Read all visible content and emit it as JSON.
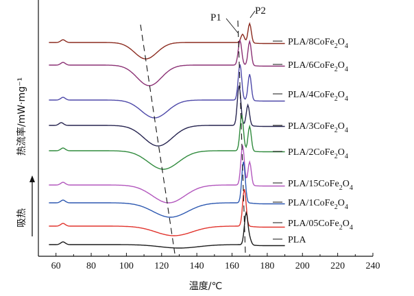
{
  "chart_data": {
    "type": "line",
    "title": "",
    "xlabel": "温度/℃",
    "ylabel": "热流率/mW·mg⁻¹",
    "endotherm_label": "吸热",
    "xlim": [
      50,
      240
    ],
    "x_ticks": [
      60,
      80,
      100,
      120,
      140,
      160,
      180,
      200,
      220,
      240
    ],
    "y_ticks_shown": false,
    "grid": false,
    "legend": "inline-right",
    "colors": {
      "PLA/8CoFe2O4": "#8b2a1e",
      "PLA/6CoFe2O4": "#8a2f73",
      "PLA/4CoFe2O4": "#4c47a8",
      "PLA/3CoFe2O4": "#25234f",
      "PLA/2CoFe2O4": "#2f8a3c",
      "PLA/15CoFe2O4": "#b256bd",
      "PLA/1CoFe2O4": "#2b57b0",
      "PLA/05CoFe2O4": "#e1322b",
      "PLA": "#1a1a1a"
    },
    "annotations": [
      {
        "text": "P1",
        "type": "peak",
        "x": 164.5
      },
      {
        "text": "P2",
        "type": "peak",
        "x": 169.5
      },
      {
        "type": "dashed-guide",
        "description": "cold-crystallization peak trend",
        "from": {
          "x": 108
        },
        "to": {
          "x": 128
        }
      },
      {
        "type": "dashed-guide",
        "description": "melting peak trend",
        "from": {
          "x": 163
        },
        "to": {
          "x": 168
        }
      }
    ],
    "series": [
      {
        "name": "PLA/8CoFe2O4",
        "label_main": "PLA/8CoFe",
        "label_sub": "2",
        "label_tail": "O",
        "label_sub2": "4",
        "glass_transition": 64,
        "cold_cryst_peak": 111,
        "melt_peaks": [
          166,
          170
        ]
      },
      {
        "name": "PLA/6CoFe2O4",
        "label_main": "PLA/6CoFe",
        "label_sub": "2",
        "label_tail": "O",
        "label_sub2": "4",
        "glass_transition": 64,
        "cold_cryst_peak": 113,
        "melt_peaks": [
          164.5,
          170
        ]
      },
      {
        "name": "PLA/4CoFe2O4",
        "label_main": "PLA/4CoFe",
        "label_sub": "2",
        "label_tail": "O",
        "label_sub2": "4",
        "glass_transition": 64,
        "cold_cryst_peak": 116,
        "melt_peaks": [
          164.5,
          170
        ]
      },
      {
        "name": "PLA/3CoFe2O4",
        "label_main": "PLA/3CoFe",
        "label_sub": "2",
        "label_tail": "O",
        "label_sub2": "4",
        "glass_transition": 63,
        "cold_cryst_peak": 118,
        "melt_peaks": [
          164,
          169
        ]
      },
      {
        "name": "PLA/2CoFe2O4",
        "label_main": "PLA/2CoFe",
        "label_sub": "2",
        "label_tail": "O",
        "label_sub2": "4",
        "glass_transition": 64,
        "cold_cryst_peak": 121,
        "melt_peaks": [
          165.5,
          170
        ]
      },
      {
        "name": "PLA/15CoFe2O4",
        "label_main": "PLA/15CoFe",
        "label_sub": "2",
        "label_tail": "O",
        "label_sub2": "4",
        "glass_transition": 64,
        "cold_cryst_peak": 124,
        "melt_peaks": [
          166,
          170
        ]
      },
      {
        "name": "PLA/1CoFe2O4",
        "label_main": "PLA/1CoFe",
        "label_sub": "2",
        "label_tail": "O",
        "label_sub2": "4",
        "glass_transition": 64,
        "cold_cryst_peak": 125,
        "melt_peaks": [
          166.5
        ]
      },
      {
        "name": "PLA/05CoFe2O4",
        "label_main": "PLA/05CoFe",
        "label_sub": "2",
        "label_tail": "O",
        "label_sub2": "4",
        "glass_transition": 64,
        "cold_cryst_peak": 127,
        "melt_peaks": [
          167
        ]
      },
      {
        "name": "PLA",
        "label_main": "PLA",
        "label_sub": "",
        "label_tail": "",
        "label_sub2": "",
        "glass_transition": 64,
        "cold_cryst_peak": 130,
        "melt_peaks": [
          168,
          170
        ]
      }
    ]
  }
}
